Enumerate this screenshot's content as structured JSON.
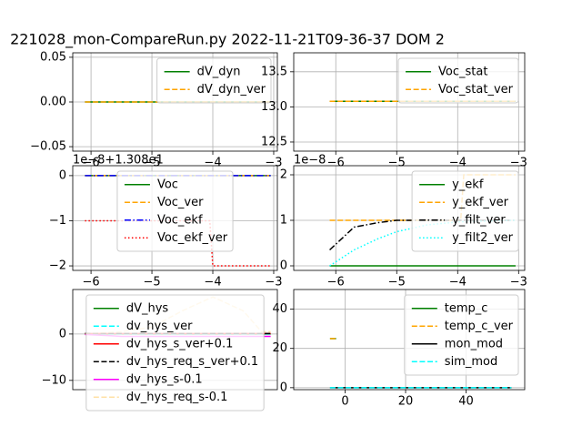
{
  "title": "221028_mon-CompareRun.py   2022-11-21T09-36-37 DOM 2",
  "chart_data": [
    {
      "type": "line",
      "xlim": [
        -6.3,
        -2.94
      ],
      "ylim": [
        -0.055,
        0.055
      ],
      "xticks": [
        {
          "value": -6,
          "label": "−6"
        },
        {
          "value": -5,
          "label": "−5"
        },
        {
          "value": -4,
          "label": "−4"
        },
        {
          "value": -3,
          "label": "−3"
        }
      ],
      "yticks": [
        {
          "value": -0.05,
          "label": "−0.05"
        },
        {
          "value": 0,
          "label": "0.00"
        },
        {
          "value": 0.05,
          "label": "0.05"
        }
      ],
      "grid": true,
      "legend": "upper right",
      "x": [
        -6.1,
        -3.05
      ],
      "series": [
        {
          "name": "dV_dyn",
          "color": "#008000",
          "style": "solid",
          "values": [
            0,
            0
          ]
        },
        {
          "name": "dV_dyn_ver",
          "color": "#ffa500",
          "style": "dashed",
          "values": [
            0,
            0
          ]
        }
      ]
    },
    {
      "type": "line",
      "xlim": [
        -6.69,
        -2.9
      ],
      "ylim": [
        12.37,
        13.77
      ],
      "xticks": [
        {
          "value": -6,
          "label": "−6"
        },
        {
          "value": -5,
          "label": "−5"
        },
        {
          "value": -4,
          "label": "−4"
        },
        {
          "value": -3,
          "label": "−3"
        }
      ],
      "yticks": [
        12.5,
        {
          "value": 13,
          "label": "13.0"
        },
        13.5
      ],
      "grid": true,
      "legend": "upper right",
      "x": [
        -6.1,
        -3.05
      ],
      "series": [
        {
          "name": "Voc_stat",
          "color": "#008000",
          "style": "solid",
          "values": [
            13.08,
            13.08
          ]
        },
        {
          "name": "Voc_stat_ver",
          "color": "#ffa500",
          "style": "dashed",
          "values": [
            13.08,
            13.08
          ]
        }
      ]
    },
    {
      "type": "line",
      "offset_label": "1e−8+1.308e1",
      "xlim": [
        -6.3,
        -2.94
      ],
      "ylim": [
        -2.1,
        0.22
      ],
      "xticks": [
        {
          "value": -6,
          "label": "−6"
        },
        {
          "value": -5,
          "label": "−5"
        },
        {
          "value": -4,
          "label": "−4"
        },
        {
          "value": -3,
          "label": "−3"
        }
      ],
      "yticks": [
        {
          "value": -2,
          "label": "−2"
        },
        {
          "value": -1,
          "label": "−1"
        },
        0
      ],
      "grid": true,
      "legend": "upper center",
      "x": [
        -6.1,
        -5.5,
        -5.0,
        -4.5,
        -4.05,
        -4.0,
        -3.5,
        -3.05
      ],
      "series": [
        {
          "name": "Voc",
          "color": "#008000",
          "style": "solid",
          "values": [
            0,
            0,
            0,
            0,
            0,
            0,
            0,
            0
          ]
        },
        {
          "name": "Voc_ver",
          "color": "#ffa500",
          "style": "dashed",
          "values": [
            0,
            0,
            0,
            0,
            0,
            0,
            0,
            0
          ]
        },
        {
          "name": "Voc_ekf",
          "color": "#0000ff",
          "style": "dashdot",
          "values": [
            0,
            0,
            0,
            0,
            0,
            0,
            0,
            0
          ]
        },
        {
          "name": "Voc_ekf_ver",
          "color": "#ff0000",
          "style": "dotted",
          "values": [
            -1,
            -1,
            -1,
            -1,
            -1,
            -2,
            -2,
            -2
          ]
        }
      ]
    },
    {
      "type": "line",
      "offset_label": "1e−8",
      "xlim": [
        -6.69,
        -2.9
      ],
      "ylim": [
        -0.1,
        2.2
      ],
      "xticks": [
        {
          "value": -6,
          "label": "−6"
        },
        {
          "value": -5,
          "label": "−5"
        },
        {
          "value": -4,
          "label": "−4"
        },
        {
          "value": -3,
          "label": "−3"
        }
      ],
      "yticks": [
        0,
        1,
        2
      ],
      "grid": true,
      "legend": "upper right",
      "x": [
        -6.1,
        -5.7,
        -5.3,
        -5.0,
        -4.5,
        -3.95,
        -3.9,
        -3.05
      ],
      "series": [
        {
          "name": "y_ekf",
          "color": "#008000",
          "style": "solid",
          "values": [
            0,
            0,
            0,
            0,
            0,
            0,
            0,
            0
          ]
        },
        {
          "name": "y_ekf_ver",
          "color": "#ffa500",
          "style": "dashed",
          "values": [
            1,
            1,
            1,
            1,
            1,
            1,
            2,
            2
          ]
        },
        {
          "name": "y_filt_ver",
          "color": "#000000",
          "style": "dashdot",
          "values": [
            0.35,
            0.85,
            0.95,
            1,
            1,
            1,
            1,
            1
          ]
        },
        {
          "name": "y_filt2_ver",
          "color": "#00ffff",
          "style": "dotted",
          "values": [
            0,
            0.35,
            0.6,
            0.75,
            0.9,
            0.97,
            0.97,
            1
          ]
        }
      ]
    },
    {
      "type": "line",
      "xlim": [
        -6.3,
        -2.94
      ],
      "ylim": [
        -12,
        9.6
      ],
      "yticks": [
        {
          "value": -10,
          "label": "−10"
        },
        0
      ],
      "grid": true,
      "legend": "upper center",
      "x": [
        -6.1,
        -5.5,
        -5.0,
        -4.5,
        -4.0,
        -3.5,
        -3.2,
        -3.05
      ],
      "series": [
        {
          "name": "dV_hys",
          "color": "#008000",
          "style": "solid",
          "values": [
            0,
            0,
            0,
            0,
            0,
            0,
            0,
            0
          ]
        },
        {
          "name": "dv_hys_ver",
          "color": "#00ffff",
          "style": "dashed",
          "values": [
            0,
            0,
            0,
            0,
            0,
            0,
            0,
            0
          ]
        },
        {
          "name": "dv_hys_s_ver+0.1",
          "color": "#ff0000",
          "style": "solid",
          "values": [
            0.1,
            0.1,
            0.1,
            0.1,
            0.1,
            0.1,
            0.1,
            0.1
          ]
        },
        {
          "name": "dv_hys_req_s_ver+0.1",
          "color": "#000000",
          "style": "dashed",
          "values": [
            0.1,
            0.1,
            0.1,
            0.1,
            0.1,
            0.1,
            0.1,
            0.1
          ]
        },
        {
          "name": "dv_hys_s-0.1",
          "color": "#ff00ff",
          "style": "solid",
          "values": [
            -0.1,
            -0.5,
            -0.5,
            -0.5,
            -0.5,
            -0.5,
            -0.5,
            -0.5
          ]
        },
        {
          "name": "dv_hys_req_s-0.1",
          "color": "#ffa500",
          "style": "dashed",
          "alpha": 0.35,
          "values": [
            0,
            0.5,
            1.5,
            5,
            8,
            5,
            0.5,
            0.5
          ]
        }
      ]
    },
    {
      "type": "line",
      "xlim": [
        -17,
        59.4
      ],
      "ylim": [
        -1,
        50
      ],
      "xticks": [
        0,
        20,
        40
      ],
      "yticks": [
        0,
        20,
        40
      ],
      "grid": true,
      "legend": "upper right",
      "series": [
        {
          "name": "temp_c",
          "color": "#008000",
          "style": "solid",
          "x": [
            -5,
            -3
          ],
          "values": [
            25,
            25
          ]
        },
        {
          "name": "temp_c_ver",
          "color": "#ffa500",
          "style": "dashed",
          "x": [
            -5,
            -3
          ],
          "values": [
            25,
            25
          ]
        },
        {
          "name": "mon_mod",
          "color": "#000000",
          "style": "solid",
          "x": [
            -5,
            55
          ],
          "values": [
            0,
            0
          ]
        },
        {
          "name": "sim_mod",
          "color": "#00ffff",
          "style": "dashed",
          "x": [
            -5,
            55
          ],
          "values": [
            0,
            0
          ]
        }
      ]
    }
  ]
}
